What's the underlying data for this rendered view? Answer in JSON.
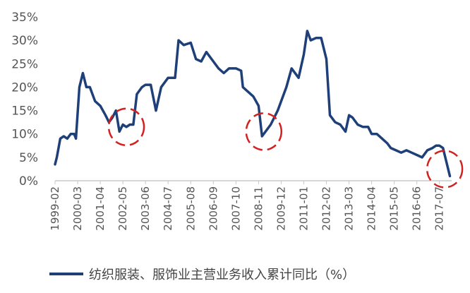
{
  "chart_data": {
    "type": "line",
    "title": "",
    "xlabel": "",
    "ylabel": "",
    "ylim": [
      0,
      35
    ],
    "y_ticks": [
      "0%",
      "5%",
      "10%",
      "15%",
      "20%",
      "25%",
      "30%",
      "35%"
    ],
    "x_ticks": [
      "1999-02",
      "2000-03",
      "2001-04",
      "2002-05",
      "2003-06",
      "2004-07",
      "2005-08",
      "2006-09",
      "2007-10",
      "2008-11",
      "2009-12",
      "2011-01",
      "2012-02",
      "2013-03",
      "2014-04",
      "2015-05",
      "2016-06",
      "2017-07"
    ],
    "grid": false,
    "legend": "bottom",
    "series": [
      {
        "name": "纺织服装、服饰业主营业务收入累计同比（%）",
        "color": "#1f3f78",
        "points": [
          [
            "1999-02",
            3.5
          ],
          [
            "1999-03",
            5
          ],
          [
            "1999-05",
            9
          ],
          [
            "1999-07",
            9.5
          ],
          [
            "1999-09",
            9
          ],
          [
            "1999-11",
            10
          ],
          [
            "2000-01",
            10
          ],
          [
            "2000-02",
            9
          ],
          [
            "2000-04",
            20
          ],
          [
            "2000-06",
            23
          ],
          [
            "2000-08",
            20
          ],
          [
            "2000-10",
            20
          ],
          [
            "2001-01",
            17
          ],
          [
            "2001-04",
            16
          ],
          [
            "2001-07",
            14
          ],
          [
            "2001-09",
            12.5
          ],
          [
            "2001-11",
            13.5
          ],
          [
            "2002-01",
            15
          ],
          [
            "2002-03",
            10.5
          ],
          [
            "2002-05",
            12
          ],
          [
            "2002-07",
            11.5
          ],
          [
            "2002-09",
            12
          ],
          [
            "2002-11",
            12
          ],
          [
            "2003-01",
            18.5
          ],
          [
            "2003-04",
            20
          ],
          [
            "2003-06",
            20.5
          ],
          [
            "2003-09",
            20.5
          ],
          [
            "2003-12",
            15
          ],
          [
            "2004-03",
            20
          ],
          [
            "2004-07",
            22
          ],
          [
            "2004-09",
            22
          ],
          [
            "2004-11",
            22
          ],
          [
            "2005-01",
            30
          ],
          [
            "2005-04",
            29
          ],
          [
            "2005-08",
            29.5
          ],
          [
            "2005-11",
            26
          ],
          [
            "2006-02",
            25.5
          ],
          [
            "2006-05",
            27.5
          ],
          [
            "2006-09",
            25.5
          ],
          [
            "2006-12",
            24
          ],
          [
            "2007-03",
            23
          ],
          [
            "2007-06",
            24
          ],
          [
            "2007-10",
            24
          ],
          [
            "2008-01",
            23.5
          ],
          [
            "2008-02",
            20
          ],
          [
            "2008-05",
            19
          ],
          [
            "2008-08",
            18
          ],
          [
            "2008-11",
            16
          ],
          [
            "2009-01",
            9.5
          ],
          [
            "2009-06",
            12
          ],
          [
            "2009-10",
            15
          ],
          [
            "2010-03",
            20
          ],
          [
            "2010-06",
            24
          ],
          [
            "2010-10",
            22
          ],
          [
            "2011-01",
            27
          ],
          [
            "2011-03",
            32
          ],
          [
            "2011-05",
            30
          ],
          [
            "2011-08",
            30.5
          ],
          [
            "2011-11",
            30.5
          ],
          [
            "2012-02",
            26
          ],
          [
            "2012-04",
            14
          ],
          [
            "2012-07",
            12.5
          ],
          [
            "2012-10",
            12
          ],
          [
            "2013-01",
            10.5
          ],
          [
            "2013-03",
            14
          ],
          [
            "2013-05",
            13.5
          ],
          [
            "2013-08",
            12
          ],
          [
            "2013-11",
            11.5
          ],
          [
            "2014-02",
            11.5
          ],
          [
            "2014-04",
            10
          ],
          [
            "2014-07",
            10
          ],
          [
            "2014-10",
            9
          ],
          [
            "2015-01",
            8
          ],
          [
            "2015-03",
            7
          ],
          [
            "2015-06",
            6.5
          ],
          [
            "2015-09",
            6
          ],
          [
            "2015-12",
            6.5
          ],
          [
            "2016-03",
            6
          ],
          [
            "2016-06",
            5.5
          ],
          [
            "2016-09",
            5
          ],
          [
            "2016-12",
            6.5
          ],
          [
            "2017-03",
            7
          ],
          [
            "2017-05",
            7.5
          ],
          [
            "2017-07",
            7.5
          ],
          [
            "2017-09",
            7
          ],
          [
            "2017-11",
            4
          ],
          [
            "2018-01",
            1
          ]
        ]
      }
    ],
    "annotations": [
      {
        "shape": "dashed-circle",
        "color": "#d32020",
        "at": [
          "2002-07",
          11.5
        ]
      },
      {
        "shape": "dashed-circle",
        "color": "#d32020",
        "at": [
          "2009-02",
          10.5
        ]
      },
      {
        "shape": "dashed-circle",
        "color": "#d32020",
        "at": [
          "2017-10",
          2.5
        ]
      }
    ]
  }
}
